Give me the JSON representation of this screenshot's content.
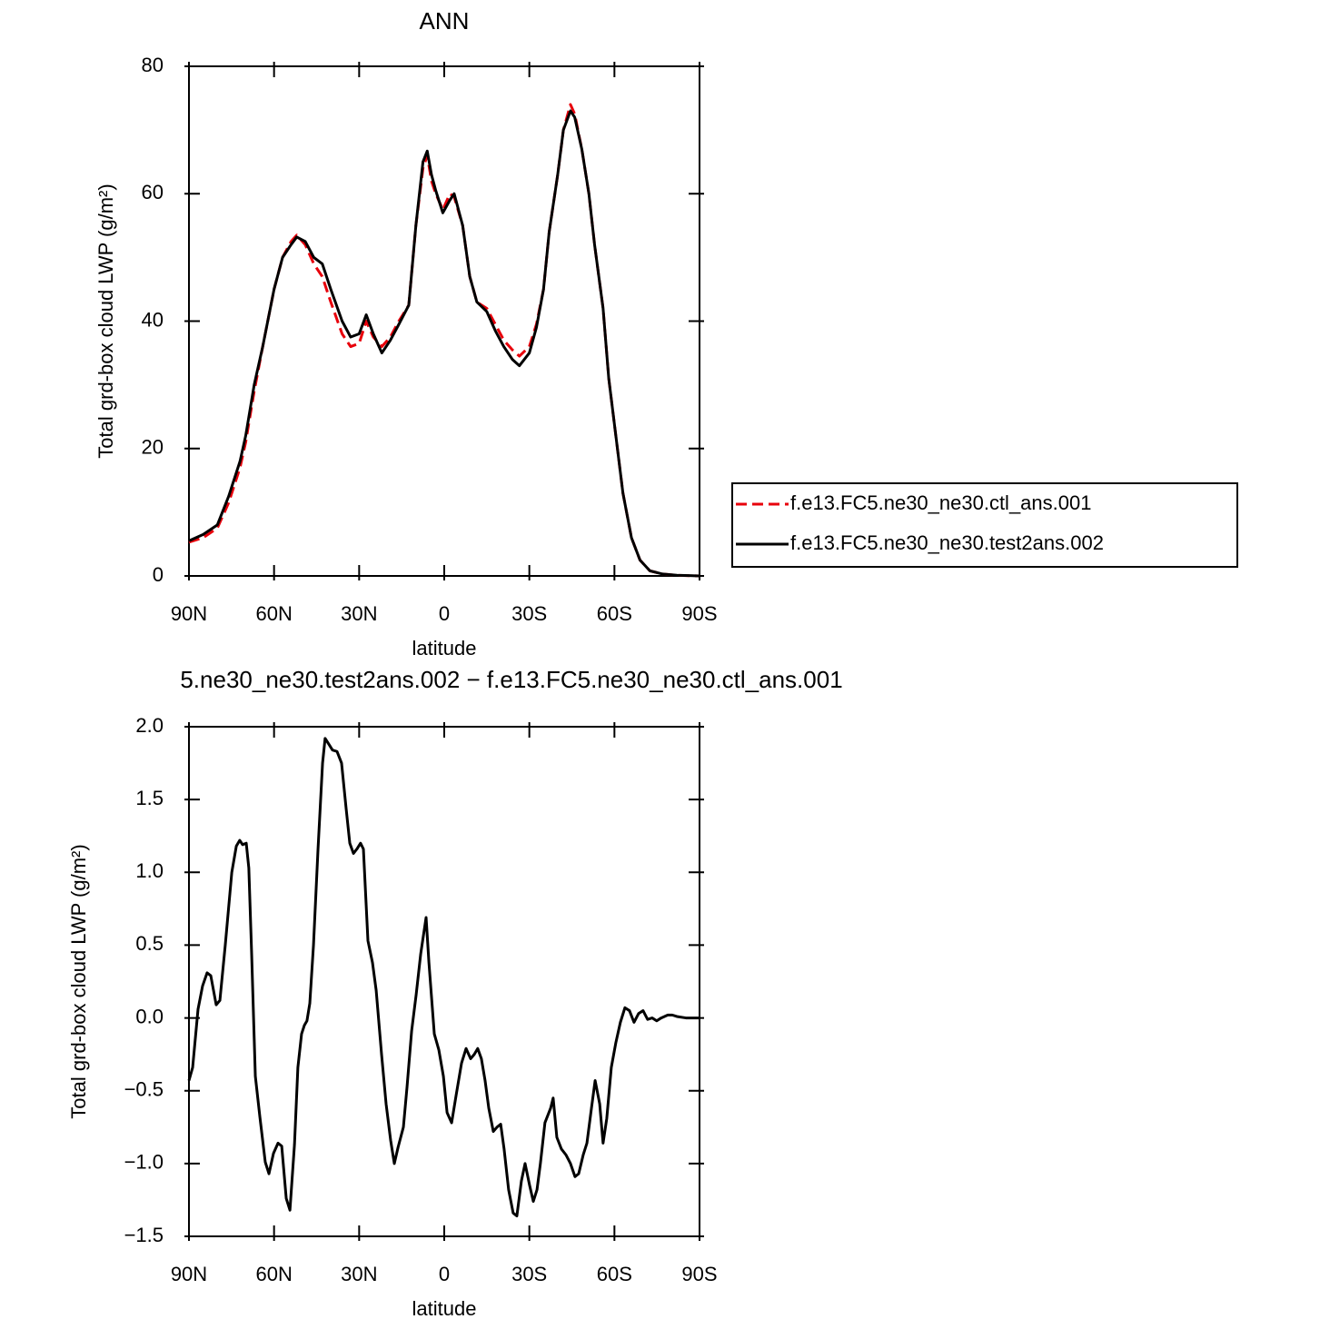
{
  "chart_data": [
    {
      "type": "line",
      "title": "ANN",
      "xlabel": "latitude",
      "ylabel": "Total grd-box cloud LWP (g/m²)",
      "x": [
        90,
        85,
        80,
        76,
        72,
        70,
        67,
        64,
        60,
        57,
        54,
        52,
        49,
        46,
        43,
        40,
        36,
        33,
        30,
        27.5,
        25,
        22,
        19,
        16,
        12.5,
        10,
        7.5,
        6,
        4.5,
        3,
        0.5,
        -2,
        -3.5,
        -6.5,
        -9,
        -11.5,
        -15,
        -18,
        -21,
        -24,
        -26.5,
        -30,
        -32.5,
        -35,
        -37,
        -40,
        -42,
        -44.5,
        -46,
        -48.5,
        -51,
        -53,
        -56,
        -58,
        -60.5,
        -63,
        -66,
        -69,
        -72.5,
        -77,
        -82,
        -90
      ],
      "series": [
        {
          "name": "f.e13.FC5.ne30_ne30.ctl_ans.001",
          "color": "#e8000b",
          "dashed": true,
          "values": [
            5.3,
            6,
            7.5,
            11.5,
            17,
            21,
            29,
            36,
            45,
            50,
            52.5,
            53.5,
            52,
            49,
            47,
            43,
            38,
            36,
            36.5,
            40,
            37.5,
            36,
            37.5,
            40,
            42.5,
            55,
            64,
            66,
            62,
            60,
            57.5,
            60,
            59.5,
            55,
            47,
            43,
            42,
            39.5,
            37,
            35.5,
            34.5,
            36,
            39.5,
            45,
            54,
            63,
            70,
            74,
            72.5,
            67,
            60,
            52,
            42,
            31,
            22,
            13,
            6,
            2.5,
            0.8,
            0.3,
            0.1,
            0
          ]
        },
        {
          "name": "f.e13.FC5.ne30_ne30.test2ans.002",
          "color": "#000000",
          "dashed": false,
          "values": [
            5.5,
            6.5,
            8,
            12.5,
            18,
            22,
            30,
            36,
            45,
            50,
            52,
            53.2,
            52.5,
            50,
            49,
            45,
            40,
            37.5,
            38,
            41,
            38,
            35,
            37,
            39.5,
            42.5,
            55,
            65,
            66.7,
            63,
            60.5,
            57,
            59,
            60,
            55,
            47,
            43,
            41.5,
            38.5,
            36,
            34,
            33,
            35,
            39,
            45,
            54,
            63,
            70,
            73,
            72,
            67,
            60,
            52,
            42,
            31,
            22,
            13,
            6,
            2.5,
            0.8,
            0.3,
            0.1,
            0
          ]
        }
      ],
      "xlim": [
        90,
        -90
      ],
      "xticks": [
        {
          "value": 90,
          "label": "90N"
        },
        {
          "value": 60,
          "label": "60N"
        },
        {
          "value": 30,
          "label": "30N"
        },
        0,
        {
          "value": -30,
          "label": "30S"
        },
        {
          "value": -60,
          "label": "60S"
        },
        {
          "value": -90,
          "label": "90S"
        }
      ],
      "ylim": [
        0,
        80
      ],
      "yticks": [
        0,
        20,
        40,
        60,
        80
      ],
      "grid": false,
      "legend": "right"
    },
    {
      "type": "line",
      "title": "5.ne30_ne30.test2ans.002 − f.e13.FC5.ne30_ne30.ctl_ans.001",
      "xlabel": "latitude",
      "ylabel": "Total grd-box cloud LWP (g/m²)",
      "x": [
        90,
        88.7,
        86.8,
        85.2,
        83.6,
        82.3,
        80.4,
        79.1,
        77.2,
        74.9,
        73.3,
        72.1,
        71.1,
        69.8,
        68.9,
        67.9,
        66.6,
        65.0,
        63.1,
        61.8,
        60.2,
        58.6,
        57.3,
        55.7,
        54.4,
        52.8,
        51.6,
        50.3,
        49.3,
        48.4,
        47.4,
        46.1,
        44.5,
        42.9,
        42.0,
        40.7,
        39.4,
        37.8,
        36.2,
        34.6,
        33.3,
        32.0,
        30.8,
        29.5,
        28.5,
        26.9,
        25.3,
        24.0,
        22.1,
        20.5,
        18.9,
        17.6,
        16.3,
        14.4,
        13.1,
        11.5,
        9.9,
        8.3,
        6.4,
        5.4,
        3.5,
        1.9,
        0.3,
        -1.0,
        -2.6,
        -4.2,
        -6.1,
        -7.7,
        -9.3,
        -10.6,
        -11.8,
        -13.1,
        -14.4,
        -15.7,
        -17.3,
        -18.6,
        -19.9,
        -21.1,
        -22.7,
        -24.3,
        -25.6,
        -27.2,
        -28.5,
        -30.1,
        -31.4,
        -32.7,
        -33.9,
        -35.5,
        -37.5,
        -38.4,
        -39.7,
        -41.3,
        -42.9,
        -44.5,
        -46.1,
        -47.4,
        -49.0,
        -50.3,
        -51.9,
        -53.2,
        -54.8,
        -56.0,
        -57.3,
        -58.9,
        -60.5,
        -62.1,
        -63.7,
        -65.3,
        -66.9,
        -68.5,
        -70.1,
        -71.7,
        -73.3,
        -74.9,
        -76.5,
        -78.8,
        -80.4,
        -82.0,
        -85.2,
        -90
      ],
      "values": [
        -0.43,
        -0.34,
        0.06,
        0.22,
        0.31,
        0.29,
        0.09,
        0.12,
        0.5,
        1.0,
        1.18,
        1.22,
        1.19,
        1.2,
        1.03,
        0.44,
        -0.4,
        -0.68,
        -0.99,
        -1.07,
        -0.93,
        -0.86,
        -0.88,
        -1.24,
        -1.32,
        -0.87,
        -0.34,
        -0.11,
        -0.05,
        -0.02,
        0.1,
        0.5,
        1.16,
        1.75,
        1.92,
        1.88,
        1.84,
        1.83,
        1.75,
        1.44,
        1.2,
        1.13,
        1.16,
        1.2,
        1.16,
        0.53,
        0.38,
        0.19,
        -0.25,
        -0.59,
        -0.84,
        -1.0,
        -0.89,
        -0.75,
        -0.47,
        -0.09,
        0.16,
        0.44,
        0.69,
        0.38,
        -0.11,
        -0.22,
        -0.4,
        -0.65,
        -0.72,
        -0.53,
        -0.31,
        -0.21,
        -0.28,
        -0.25,
        -0.21,
        -0.28,
        -0.43,
        -0.62,
        -0.78,
        -0.75,
        -0.73,
        -0.9,
        -1.18,
        -1.34,
        -1.36,
        -1.12,
        -1.0,
        -1.15,
        -1.26,
        -1.18,
        -1.0,
        -0.72,
        -0.62,
        -0.55,
        -0.82,
        -0.9,
        -0.94,
        -1.0,
        -1.09,
        -1.07,
        -0.94,
        -0.86,
        -0.62,
        -0.43,
        -0.59,
        -0.86,
        -0.69,
        -0.34,
        -0.17,
        -0.03,
        0.07,
        0.05,
        -0.03,
        0.03,
        0.05,
        -0.01,
        0,
        -0.02,
        0,
        0.02,
        0.02,
        0.01,
        0,
        0
      ],
      "color": "#000000",
      "xlim": [
        90,
        -90
      ],
      "xticks": [
        {
          "value": 90,
          "label": "90N"
        },
        {
          "value": 60,
          "label": "60N"
        },
        {
          "value": 30,
          "label": "30N"
        },
        0,
        {
          "value": -30,
          "label": "30S"
        },
        {
          "value": -60,
          "label": "60S"
        },
        {
          "value": -90,
          "label": "90S"
        }
      ],
      "ylim": [
        -1.5,
        2.0
      ],
      "yticks": [
        {
          "value": -1.5,
          "label": "−1.5"
        },
        {
          "value": -1,
          "label": "−1.0"
        },
        {
          "value": -0.5,
          "label": "−0.5"
        },
        {
          "value": 0,
          "label": "0.0"
        },
        0.5,
        {
          "value": 1,
          "label": "1.0"
        },
        1.5,
        {
          "value": 2,
          "label": "2.0"
        }
      ],
      "grid": false
    }
  ]
}
